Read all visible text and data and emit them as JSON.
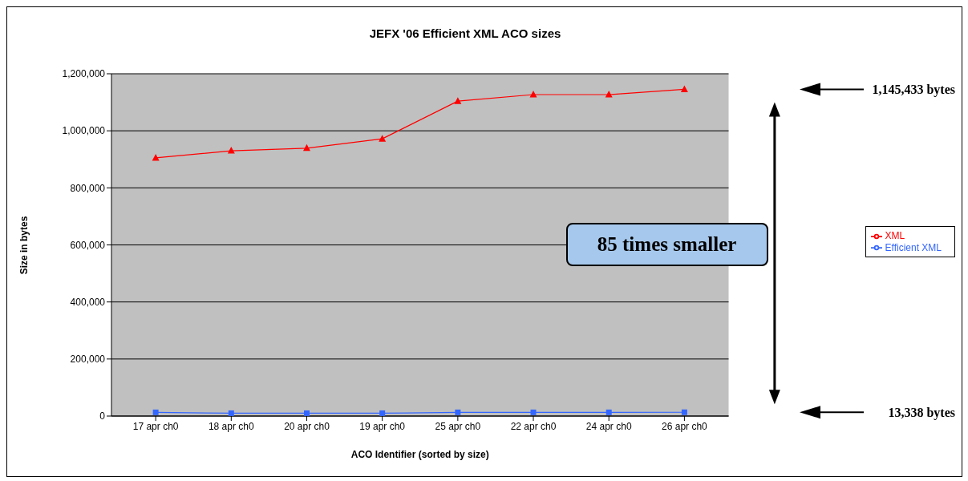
{
  "chart_data": {
    "type": "line",
    "title": "JEFX '06 Efficient XML ACO sizes",
    "xlabel": "ACO Identifier (sorted by size)",
    "ylabel": "Size in bytes",
    "categories": [
      "17 apr ch0",
      "18 apr ch0",
      "20 apr ch0",
      "19 apr ch0",
      "25 apr ch0",
      "22 apr ch0",
      "24 apr ch0",
      "26 apr ch0"
    ],
    "series": [
      {
        "name": "XML",
        "color": "#ff0000",
        "marker": "triangle",
        "values": [
          905000,
          930000,
          939000,
          972000,
          1104000,
          1127000,
          1127000,
          1145433
        ]
      },
      {
        "name": "Efficient XML",
        "color": "#3366ff",
        "marker": "square",
        "values": [
          13000,
          10000,
          10000,
          10000,
          13000,
          13000,
          13000,
          13338
        ]
      }
    ],
    "ylim": [
      0,
      1200000
    ],
    "yticks": [
      {
        "value": 0,
        "label": "0"
      },
      {
        "value": 200000,
        "label": "200,000"
      },
      {
        "value": 400000,
        "label": "400,000"
      },
      {
        "value": 600000,
        "label": "600,000"
      },
      {
        "value": 800000,
        "label": "800,000"
      },
      {
        "value": 1000000,
        "label": "1,000,000"
      },
      {
        "value": 1200000,
        "label": "1,200,000"
      }
    ],
    "grid": "y",
    "legend": "right",
    "annotations": [
      "85 times smaller",
      "1,145,433 bytes",
      "13,338 bytes"
    ]
  }
}
